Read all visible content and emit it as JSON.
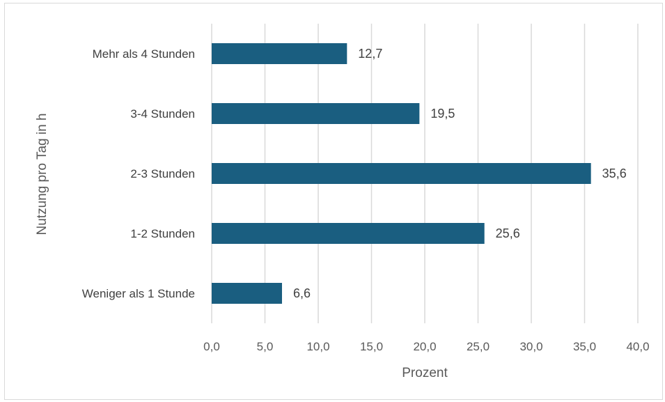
{
  "chart_data": {
    "type": "bar",
    "orientation": "horizontal",
    "categories": [
      "Weniger als 1 Stunde",
      "1-2 Stunden",
      "2-3 Stunden",
      "3-4 Stunden",
      "Mehr als 4 Stunden"
    ],
    "values": [
      6.6,
      25.6,
      35.6,
      19.5,
      12.7
    ],
    "value_labels": [
      "6,6",
      "25,6",
      "35,6",
      "19,5",
      "12,7"
    ],
    "title": "",
    "xlabel": "Prozent",
    "ylabel": "Nutzung pro Tag in h",
    "xlim": [
      0,
      40
    ],
    "x_ticks": [
      0,
      5,
      10,
      15,
      20,
      25,
      30,
      35,
      40
    ],
    "x_tick_labels": [
      "0,0",
      "5,0",
      "10,0",
      "15,0",
      "20,0",
      "25,0",
      "30,0",
      "35,0",
      "40,0"
    ],
    "grid": "vertical",
    "legend": "none",
    "bar_color": "#1a5e80",
    "grid_color": "#d9d9d9"
  }
}
